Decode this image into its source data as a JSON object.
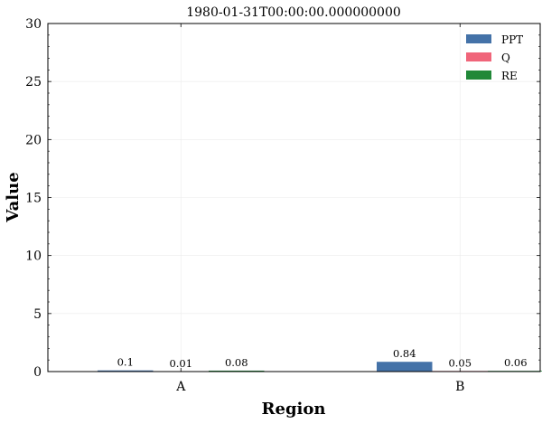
{
  "chart_data": {
    "type": "bar",
    "title": "1980-01-31T00:00:00.000000000",
    "xlabel": "Region",
    "ylabel": "Value",
    "categories": [
      "A",
      "B"
    ],
    "series": [
      {
        "name": "PPT",
        "values": [
          0.1,
          0.84
        ],
        "labels": [
          "0.1",
          "0.84"
        ],
        "color": "#4472a8"
      },
      {
        "name": "Q",
        "values": [
          0.01,
          0.05
        ],
        "labels": [
          "0.01",
          "0.05"
        ],
        "color": "#f0657a"
      },
      {
        "name": "RE",
        "values": [
          0.08,
          0.06
        ],
        "labels": [
          "0.08",
          "0.06"
        ],
        "color": "#218838"
      }
    ],
    "ylim": [
      0,
      30
    ],
    "yticks": [
      0,
      5,
      10,
      15,
      20,
      25,
      30
    ],
    "ytick_labels": [
      "0",
      "5",
      "10",
      "15",
      "20",
      "25",
      "30"
    ],
    "grid": true,
    "legend_position": "top-right"
  }
}
